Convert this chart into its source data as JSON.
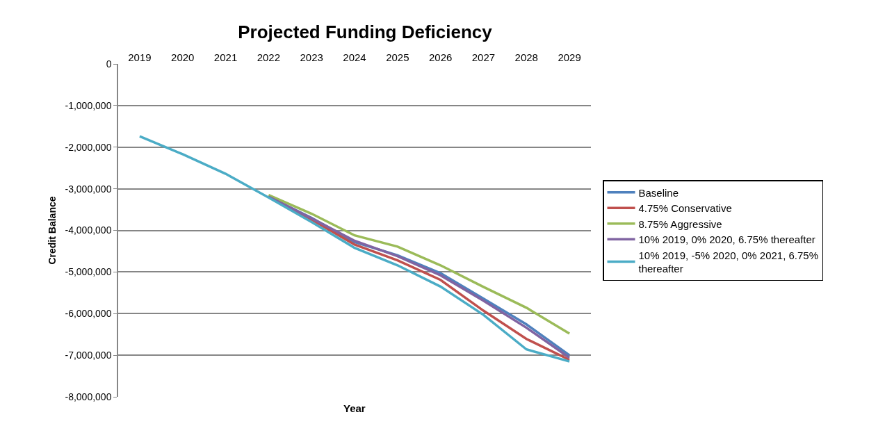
{
  "chart_data": {
    "type": "line",
    "title": "Projected Funding Deficiency",
    "xlabel": "Year",
    "ylabel": "Credit Balance",
    "categories": [
      "2019",
      "2020",
      "2021",
      "2022",
      "2023",
      "2024",
      "2025",
      "2026",
      "2027",
      "2028",
      "2029"
    ],
    "series": [
      {
        "name": "Baseline",
        "color": "#4f81bd",
        "values": [
          null,
          null,
          null,
          -3190000,
          -3700000,
          -4280000,
          -4600000,
          -5030000,
          -5640000,
          -6260000,
          -7000000
        ]
      },
      {
        "name": "4.75% Conservative",
        "color": "#c0504d",
        "values": [
          null,
          null,
          null,
          -3190000,
          -3740000,
          -4340000,
          -4720000,
          -5190000,
          -5930000,
          -6610000,
          -7110000
        ]
      },
      {
        "name": "8.75% Aggressive",
        "color": "#9bbb59",
        "values": [
          null,
          null,
          null,
          -3150000,
          -3600000,
          -4120000,
          -4390000,
          -4840000,
          -5360000,
          -5860000,
          -6480000
        ]
      },
      {
        "name": "10% 2019, 0% 2020, 6.75% thereafter",
        "color": "#8064a2",
        "values": [
          null,
          null,
          null,
          -3190000,
          -3710000,
          -4250000,
          -4620000,
          -5080000,
          -5690000,
          -6340000,
          -7060000
        ]
      },
      {
        "name": "10% 2019, -5% 2020, 0% 2021, 6.75% thereafter",
        "color": "#4bacc6",
        "values": [
          -1740000,
          -2170000,
          -2640000,
          -3210000,
          -3800000,
          -4420000,
          -4840000,
          -5350000,
          -6030000,
          -6860000,
          -7150000
        ]
      }
    ],
    "ylim": [
      -8000000,
      0
    ],
    "yticks": [
      {
        "value": 0,
        "label": "0"
      },
      {
        "value": -1000000,
        "label": "-1,000,000"
      },
      {
        "value": -2000000,
        "label": "-2,000,000"
      },
      {
        "value": -3000000,
        "label": "-3,000,000"
      },
      {
        "value": -4000000,
        "label": "-4,000,000"
      },
      {
        "value": -5000000,
        "label": "-5,000,000"
      },
      {
        "value": -6000000,
        "label": "-6,000,000"
      },
      {
        "value": -7000000,
        "label": "-7,000,000"
      },
      {
        "value": -8000000,
        "label": "-8,000,000"
      }
    ],
    "grid": "y",
    "legend": "right",
    "marker": "none",
    "line_style": "solid"
  }
}
